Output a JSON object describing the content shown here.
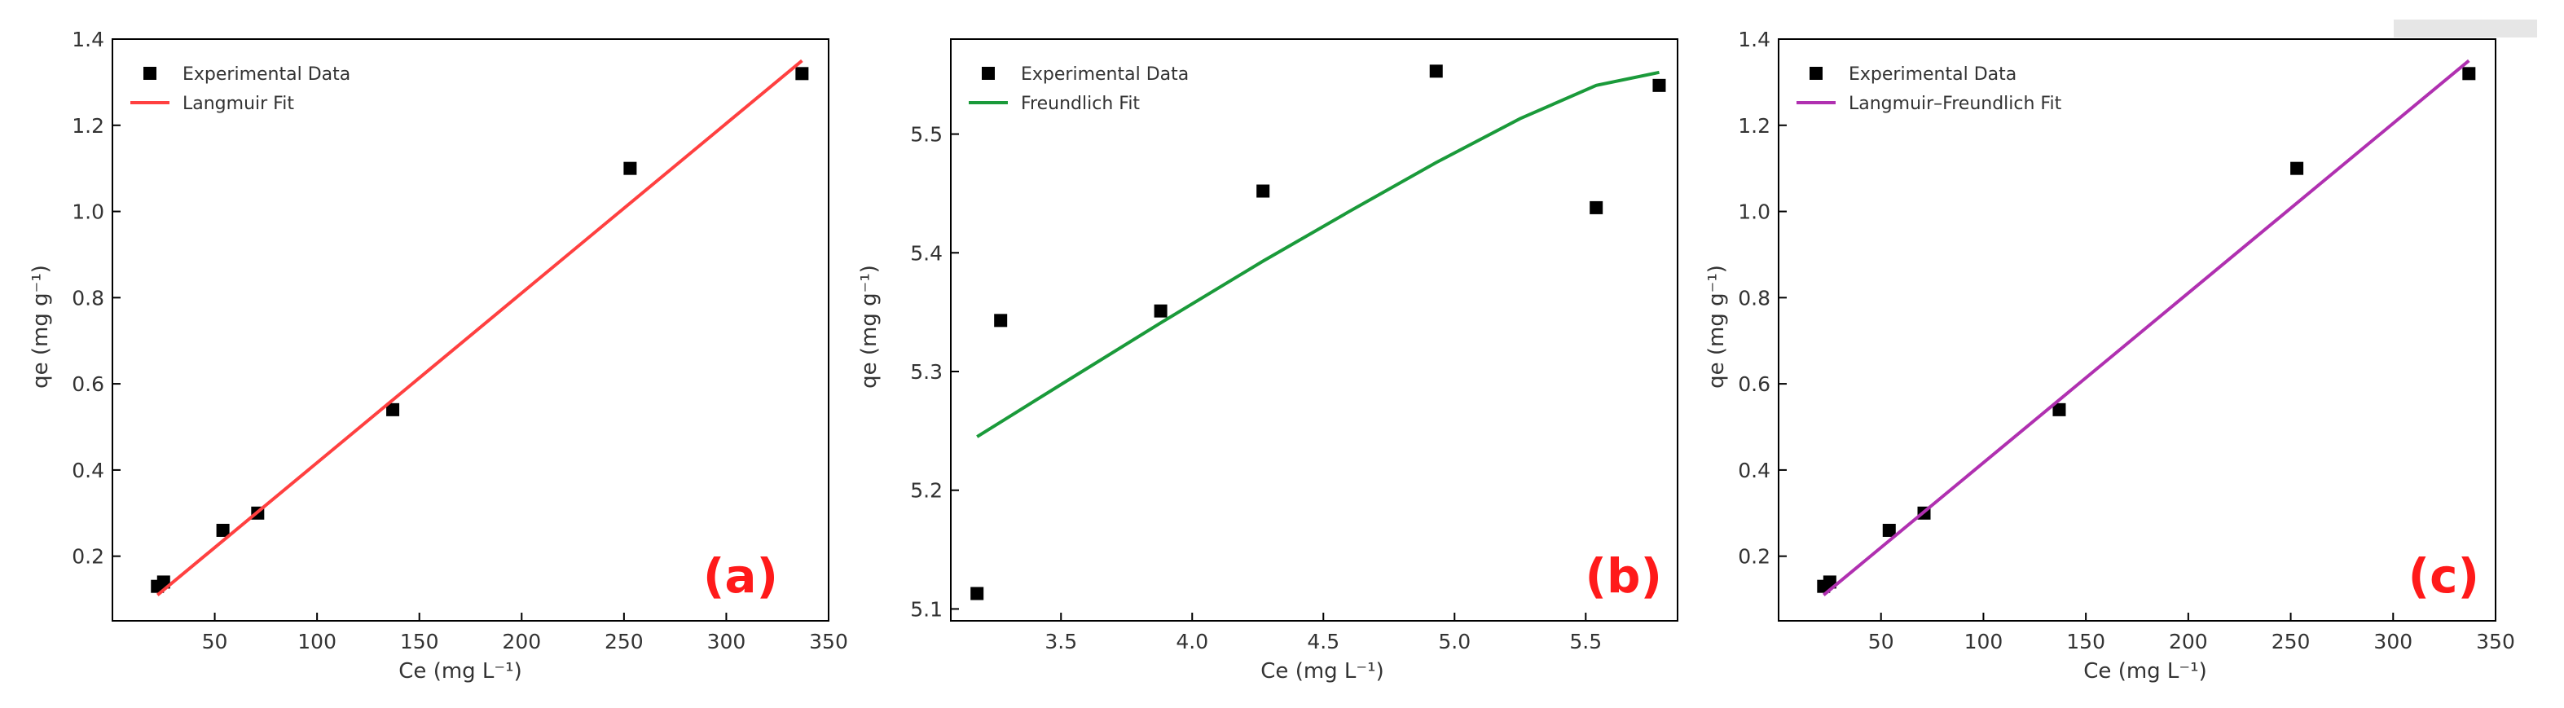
{
  "chart_data": [
    {
      "type": "scatter",
      "panel_label": "(a)",
      "xlabel": "Ce (mg L⁻¹)",
      "ylabel": "qe (mg g⁻¹)",
      "xlim": [
        0,
        350
      ],
      "ylim": [
        0.05,
        1.4
      ],
      "xticks": [
        50,
        100,
        150,
        200,
        250,
        300,
        350
      ],
      "xtick_labels": [
        "50",
        "100",
        "150",
        "200",
        "250",
        "300",
        "350"
      ],
      "yticks": [
        0.2,
        0.4,
        0.6,
        0.8,
        1.0,
        1.2,
        1.4
      ],
      "ytick_labels": [
        "0.2",
        "0.4",
        "0.6",
        "0.8",
        "1.0",
        "1.2",
        "1.4"
      ],
      "legend_position": "top-left",
      "series": [
        {
          "name": "Experimental Data",
          "kind": "scatter",
          "color": "#000000",
          "x": [
            22,
            25,
            54,
            71,
            137,
            253,
            337
          ],
          "y": [
            0.13,
            0.14,
            0.26,
            0.3,
            0.54,
            1.1,
            1.32
          ]
        },
        {
          "name": "Langmuir Fit",
          "kind": "line",
          "color": "#ff4040",
          "x": [
            22,
            337
          ],
          "y": [
            0.11,
            1.35
          ]
        }
      ]
    },
    {
      "type": "scatter",
      "panel_label": "(b)",
      "xlabel": "Ce (mg L⁻¹)",
      "ylabel": "qe (mg g⁻¹)",
      "xlim": [
        3.08,
        5.85
      ],
      "ylim": [
        5.09,
        5.58
      ],
      "xticks": [
        3.5,
        4.0,
        4.5,
        5.0,
        5.5
      ],
      "xtick_labels": [
        "3.5",
        "4.0",
        "4.5",
        "5.0",
        "5.5"
      ],
      "yticks": [
        5.1,
        5.2,
        5.3,
        5.4,
        5.5
      ],
      "ytick_labels": [
        "5.1",
        "5.2",
        "5.3",
        "5.4",
        "5.5"
      ],
      "legend_position": "top-left",
      "series": [
        {
          "name": "Experimental Data",
          "kind": "scatter",
          "color": "#000000",
          "x": [
            3.18,
            3.27,
            3.88,
            4.27,
            4.93,
            5.54,
            5.78
          ],
          "y": [
            5.113,
            5.343,
            5.351,
            5.452,
            5.553,
            5.438,
            5.541
          ]
        },
        {
          "name": "Freundlich Fit",
          "kind": "line",
          "color": "#1a9a3a",
          "x": [
            3.18,
            3.5,
            3.88,
            4.27,
            4.6,
            4.93,
            5.25,
            5.54,
            5.78
          ],
          "y": [
            5.245,
            5.289,
            5.341,
            5.393,
            5.435,
            5.476,
            5.513,
            5.541,
            5.552
          ]
        }
      ]
    },
    {
      "type": "scatter",
      "panel_label": "(c)",
      "xlabel": "Ce (mg L⁻¹)",
      "ylabel": "qe (mg g⁻¹)",
      "xlim": [
        0,
        350
      ],
      "ylim": [
        0.05,
        1.4
      ],
      "xticks": [
        50,
        100,
        150,
        200,
        250,
        300,
        350
      ],
      "xtick_labels": [
        "50",
        "100",
        "150",
        "200",
        "250",
        "300",
        "350"
      ],
      "yticks": [
        0.2,
        0.4,
        0.6,
        0.8,
        1.0,
        1.2,
        1.4
      ],
      "ytick_labels": [
        "0.2",
        "0.4",
        "0.6",
        "0.8",
        "1.0",
        "1.2",
        "1.4"
      ],
      "legend_position": "top-left",
      "series": [
        {
          "name": "Experimental Data",
          "kind": "scatter",
          "color": "#000000",
          "x": [
            22,
            25,
            54,
            71,
            137,
            253,
            337
          ],
          "y": [
            0.13,
            0.14,
            0.26,
            0.3,
            0.54,
            1.1,
            1.32
          ]
        },
        {
          "name": "Langmuir–Freundlich Fit",
          "kind": "line",
          "color": "#b030b0",
          "x": [
            22,
            337
          ],
          "y": [
            0.11,
            1.35
          ]
        }
      ]
    }
  ]
}
